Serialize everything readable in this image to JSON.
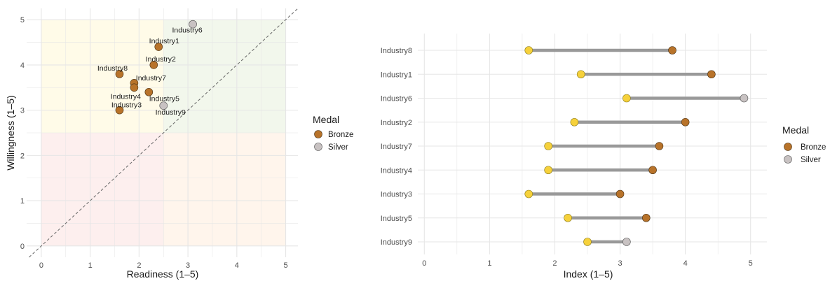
{
  "colors": {
    "bronze": "#B8732A",
    "silver": "#C8C2C2",
    "start": "#F6D13B",
    "bar": "#999999",
    "grid": "#E6E6E6",
    "diag": "#666666",
    "quad_top_left": "#FFFBE8",
    "quad_top_right": "#F2F7EC",
    "quad_bottom_left": "#FDEFEE",
    "quad_bottom_right": "#FFF5EC"
  },
  "chart_data": [
    {
      "type": "scatter",
      "title": "",
      "xlabel": "Readiness (1–5)",
      "ylabel": "Willingness (1–5)",
      "xlim": [
        -0.3,
        5.25
      ],
      "ylim": [
        -0.25,
        5.25
      ],
      "xticks": [
        "0",
        "1",
        "2",
        "3",
        "4",
        "5"
      ],
      "yticks": [
        "0",
        "1",
        "2",
        "3",
        "4",
        "5"
      ],
      "quadrant_split": 2.5,
      "reference_line": "y = x",
      "points": [
        {
          "label": "Industry6",
          "x": 3.1,
          "y": 4.9,
          "medal": "Silver"
        },
        {
          "label": "Industry1",
          "x": 2.4,
          "y": 4.4,
          "medal": "Bronze"
        },
        {
          "label": "Industry2",
          "x": 2.3,
          "y": 4.0,
          "medal": "Bronze"
        },
        {
          "label": "Industry8",
          "x": 1.6,
          "y": 3.8,
          "medal": "Bronze"
        },
        {
          "label": "Industry7",
          "x": 1.9,
          "y": 3.6,
          "medal": "Bronze"
        },
        {
          "label": "Industry4",
          "x": 1.9,
          "y": 3.5,
          "medal": "Bronze"
        },
        {
          "label": "Industry5",
          "x": 2.2,
          "y": 3.4,
          "medal": "Bronze"
        },
        {
          "label": "Industry3",
          "x": 1.6,
          "y": 3.0,
          "medal": "Bronze"
        },
        {
          "label": "Industry9",
          "x": 2.5,
          "y": 3.1,
          "medal": "Silver"
        }
      ],
      "legend": {
        "title": "Medal",
        "entries": [
          "Bronze",
          "Silver"
        ],
        "position": "right"
      },
      "grid": true
    },
    {
      "type": "dumbbell",
      "title": "",
      "xlabel": "Index (1–5)",
      "ylabel": "",
      "xlim": [
        -0.1,
        5.25
      ],
      "xticks": [
        "0",
        "1",
        "2",
        "3",
        "4",
        "5"
      ],
      "categories": [
        "Industry8",
        "Industry1",
        "Industry6",
        "Industry2",
        "Industry7",
        "Industry4",
        "Industry3",
        "Industry5",
        "Industry9"
      ],
      "start_values": [
        1.6,
        2.4,
        3.1,
        2.3,
        1.9,
        1.9,
        1.6,
        2.2,
        2.5
      ],
      "end_values": [
        3.8,
        4.4,
        4.9,
        4.0,
        3.6,
        3.5,
        3.0,
        3.4,
        3.1
      ],
      "end_medal": [
        "Bronze",
        "Bronze",
        "Silver",
        "Bronze",
        "Bronze",
        "Bronze",
        "Bronze",
        "Bronze",
        "Silver"
      ],
      "legend": {
        "title": "Medal",
        "entries": [
          "Bronze",
          "Silver"
        ],
        "position": "right"
      },
      "grid": true
    }
  ]
}
